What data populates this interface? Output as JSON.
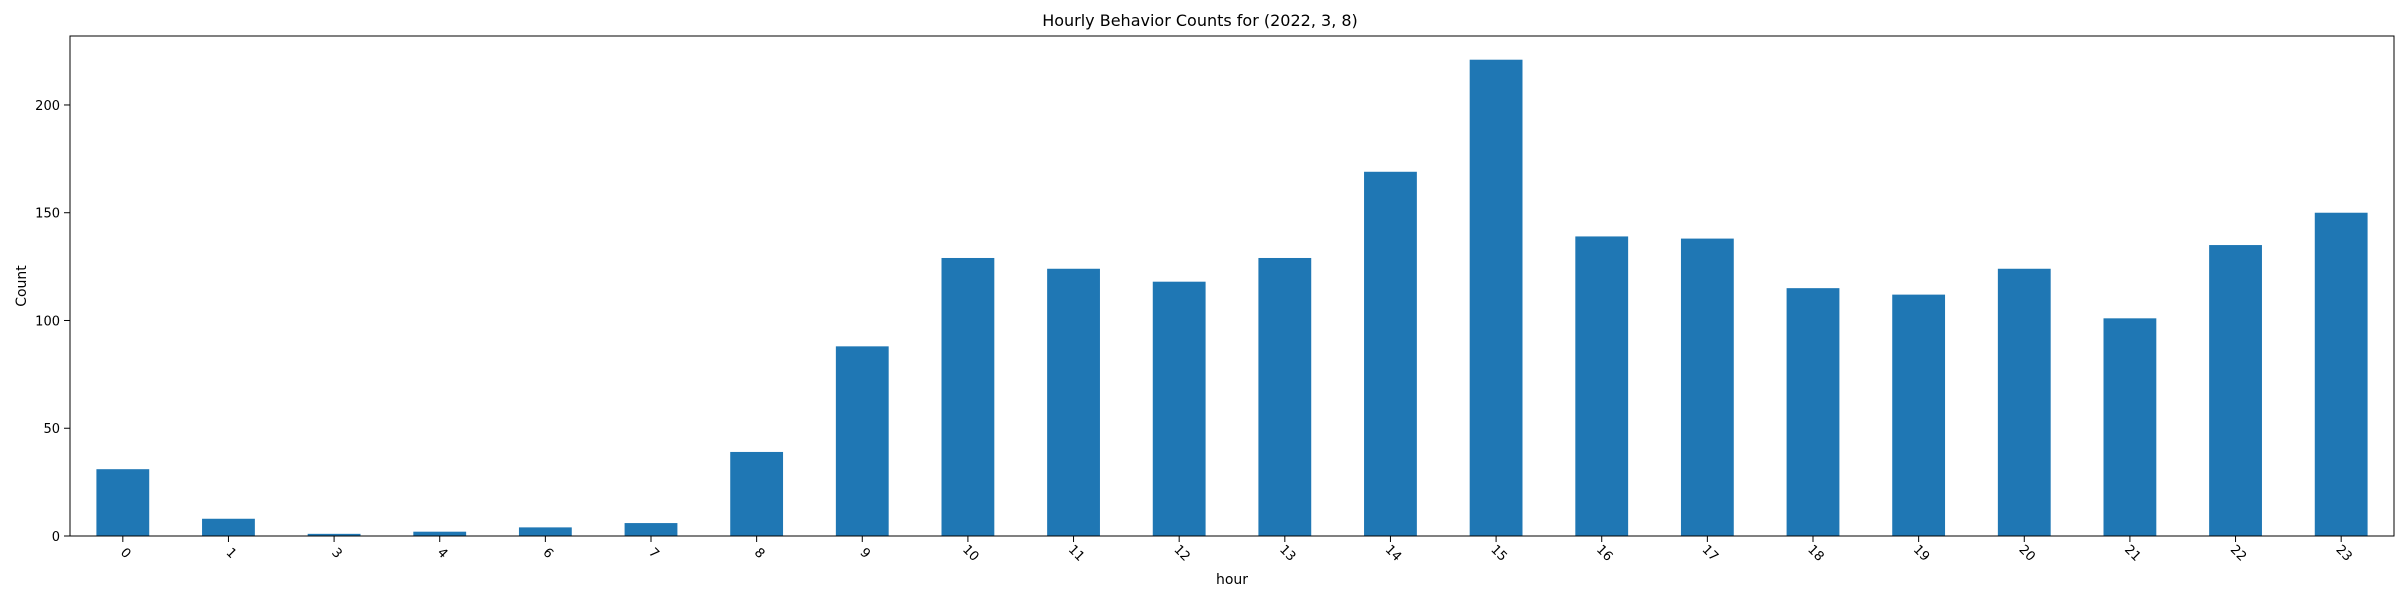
{
  "chart_data": {
    "type": "bar",
    "title": "Hourly Behavior Counts for (2022, 3, 8)",
    "xlabel": "hour",
    "ylabel": "Count",
    "categories": [
      "0",
      "1",
      "3",
      "4",
      "6",
      "7",
      "8",
      "9",
      "10",
      "11",
      "12",
      "13",
      "14",
      "15",
      "16",
      "17",
      "18",
      "19",
      "20",
      "21",
      "22",
      "23"
    ],
    "values": [
      31,
      8,
      1,
      2,
      4,
      6,
      39,
      88,
      129,
      124,
      118,
      129,
      169,
      221,
      139,
      138,
      115,
      112,
      124,
      101,
      135,
      150
    ],
    "ylim": [
      0,
      232
    ],
    "yticks": [
      "0",
      "50",
      "100",
      "150",
      "200"
    ],
    "bar_color": "#1f77b4",
    "grid": false,
    "legend": "none"
  }
}
